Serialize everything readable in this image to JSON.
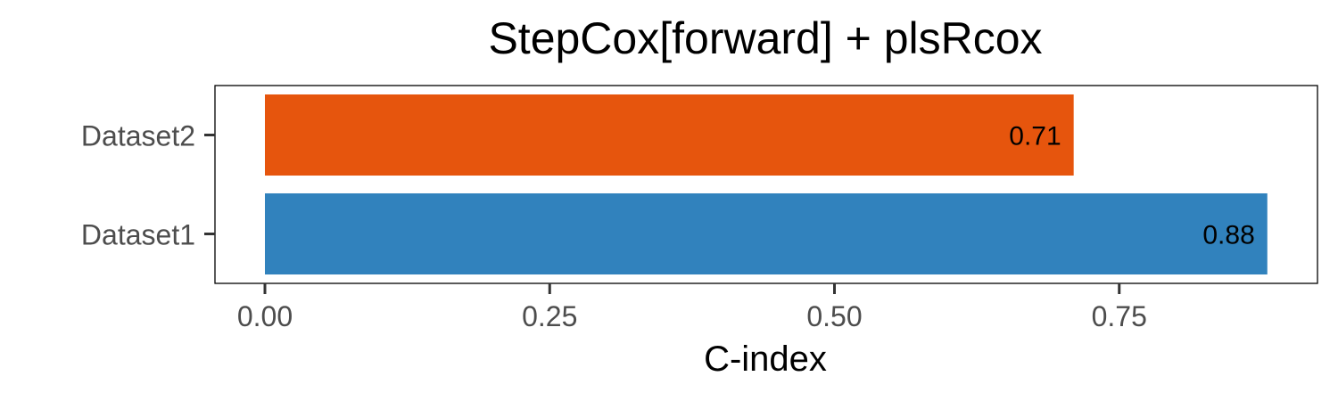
{
  "chart_data": {
    "type": "bar",
    "orientation": "horizontal",
    "title": "StepCox[forward] + plsRcox",
    "xlabel": "C-index",
    "ylabel": "",
    "categories": [
      "Dataset1",
      "Dataset2"
    ],
    "values": [
      0.88,
      0.71
    ],
    "value_labels": [
      "0.88",
      "0.71"
    ],
    "colors": [
      "#3182bd",
      "#e6550d"
    ],
    "xlim": [
      0,
      0.925
    ],
    "x_ticks": [
      0,
      0.25,
      0.5,
      0.75
    ],
    "x_tick_labels": [
      "0.00",
      "0.25",
      "0.50",
      "0.75"
    ],
    "grid": false,
    "legend": "none"
  }
}
